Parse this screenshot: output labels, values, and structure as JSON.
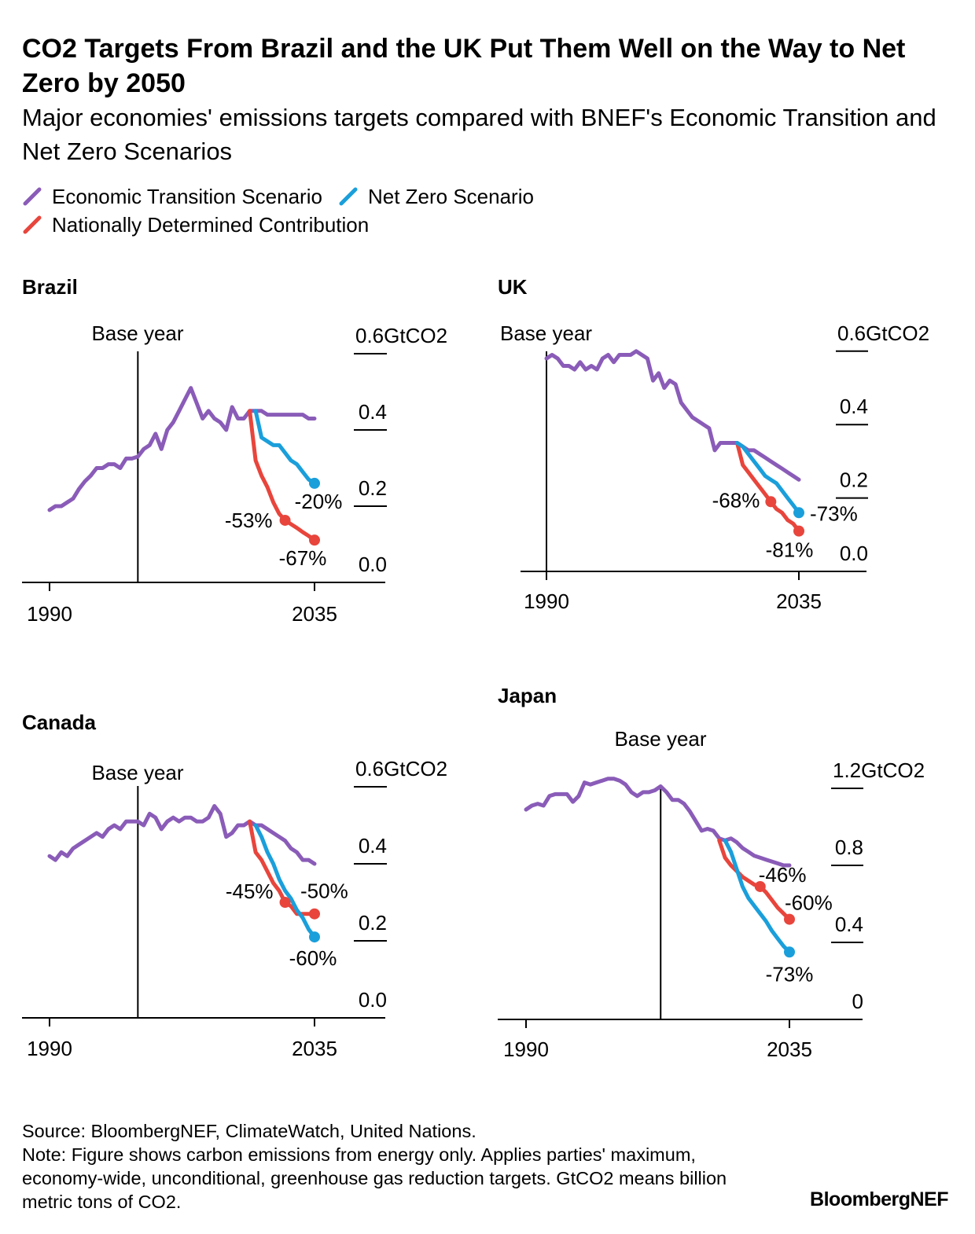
{
  "title": "CO2 Targets From Brazil and the UK Put Them Well on the Way to Net Zero by 2050",
  "subtitle": "Major economies' emissions targets compared with BNEF's Economic Transition and Net Zero Scenarios",
  "legend": [
    {
      "label": "Economic Transition Scenario",
      "color": "#8a5cb8"
    },
    {
      "label": "Net Zero Scenario",
      "color": "#1a9fdb"
    },
    {
      "label": "Nationally Determined Contribution",
      "color": "#e8453c"
    }
  ],
  "footer": {
    "source": "Source: BloombergNEF, ClimateWatch, United Nations.",
    "note": "Note: Figure shows carbon emissions from energy only. Applies parties' maximum, economy-wide, unconditional, greenhouse gas reduction targets. GtCO2 means billion metric tons of CO2.",
    "brand": "BloombergNEF"
  },
  "chart_data": [
    {
      "type": "line",
      "title": "Brazil",
      "base_year": 2005,
      "base_label": "Base year",
      "xlim": [
        1990,
        2035
      ],
      "xticks": [
        "1990",
        "2035"
      ],
      "ylim": [
        0,
        0.6
      ],
      "yticks": [
        {
          "v": 0,
          "label": "0.0"
        },
        {
          "v": 0.2,
          "label": "0.2"
        },
        {
          "v": 0.4,
          "label": "0.4"
        },
        {
          "v": 0.6,
          "label": "0.6GtCO2"
        }
      ],
      "series": [
        {
          "name": "Economic Transition Scenario",
          "color": "#8a5cb8",
          "start": 1990,
          "values": [
            0.19,
            0.2,
            0.2,
            0.21,
            0.22,
            0.245,
            0.265,
            0.28,
            0.3,
            0.3,
            0.31,
            0.31,
            0.3,
            0.325,
            0.325,
            0.33,
            0.35,
            0.36,
            0.39,
            0.35,
            0.4,
            0.42,
            0.45,
            0.48,
            0.51,
            0.47,
            0.43,
            0.45,
            0.43,
            0.42,
            0.4,
            0.46,
            0.43,
            0.43,
            0.45,
            0.45,
            0.45,
            0.44,
            0.44,
            0.44,
            0.44,
            0.44,
            0.44,
            0.44,
            0.43,
            0.43
          ]
        },
        {
          "name": "Net Zero Scenario",
          "color": "#1a9fdb",
          "start": 2025,
          "values": [
            0.45,
            0.38,
            0.37,
            0.36,
            0.36,
            0.34,
            0.32,
            0.31,
            0.29,
            0.27,
            0.26
          ],
          "points": [
            {
              "year": 2035,
              "label": "-20%"
            }
          ]
        },
        {
          "name": "Nationally Determined Contribution",
          "color": "#e8453c",
          "start": 2024,
          "values": [
            0.45,
            0.32,
            0.28,
            0.25,
            0.21,
            0.18,
            0.163,
            0.153,
            0.143,
            0.132,
            0.122,
            0.111
          ],
          "points": [
            {
              "year": 2030,
              "label": "-53%"
            },
            {
              "year": 2035,
              "label": "-67%"
            }
          ]
        }
      ]
    },
    {
      "type": "line",
      "title": "UK",
      "base_year": 1990,
      "base_label": "Base year",
      "xlim": [
        1990,
        2035
      ],
      "xticks": [
        "1990",
        "2035"
      ],
      "ylim": [
        0,
        0.6
      ],
      "yticks": [
        {
          "v": 0,
          "label": "0.0"
        },
        {
          "v": 0.2,
          "label": "0.2"
        },
        {
          "v": 0.4,
          "label": "0.4"
        },
        {
          "v": 0.6,
          "label": "0.6GtCO2"
        }
      ],
      "series": [
        {
          "name": "Economic Transition Scenario",
          "color": "#8a5cb8",
          "start": 1990,
          "values": [
            0.58,
            0.59,
            0.58,
            0.56,
            0.56,
            0.55,
            0.57,
            0.55,
            0.56,
            0.55,
            0.58,
            0.59,
            0.57,
            0.59,
            0.59,
            0.59,
            0.6,
            0.59,
            0.58,
            0.52,
            0.54,
            0.5,
            0.52,
            0.51,
            0.46,
            0.44,
            0.42,
            0.41,
            0.4,
            0.39,
            0.33,
            0.35,
            0.35,
            0.35,
            0.35,
            0.34,
            0.33,
            0.33,
            0.32,
            0.31,
            0.3,
            0.29,
            0.28,
            0.27,
            0.26,
            0.25
          ]
        },
        {
          "name": "Net Zero Scenario",
          "color": "#1a9fdb",
          "start": 2024,
          "values": [
            0.35,
            0.34,
            0.32,
            0.3,
            0.28,
            0.26,
            0.25,
            0.24,
            0.22,
            0.2,
            0.18,
            0.16
          ]
        },
        {
          "name": "Nationally Determined Contribution",
          "color": "#e8453c",
          "start": 2024,
          "values": [
            0.35,
            0.29,
            0.27,
            0.25,
            0.23,
            0.21,
            0.19,
            0.17,
            0.16,
            0.14,
            0.13,
            0.11
          ],
          "points": [
            {
              "year": 2030,
              "label": "-68%"
            },
            {
              "year": 2035,
              "label": "-81%"
            }
          ]
        }
      ],
      "nz_point_label": "-73%"
    },
    {
      "type": "line",
      "title": "Canada",
      "base_year": 2005,
      "base_label": "Base year",
      "xlim": [
        1990,
        2035
      ],
      "xticks": [
        "1990",
        "2035"
      ],
      "ylim": [
        0,
        0.6
      ],
      "yticks": [
        {
          "v": 0,
          "label": "0.0"
        },
        {
          "v": 0.2,
          "label": "0.2"
        },
        {
          "v": 0.4,
          "label": "0.4"
        },
        {
          "v": 0.6,
          "label": "0.6GtCO2"
        }
      ],
      "series": [
        {
          "name": "Economic Transition Scenario",
          "color": "#8a5cb8",
          "start": 1990,
          "values": [
            0.42,
            0.41,
            0.43,
            0.42,
            0.44,
            0.45,
            0.46,
            0.47,
            0.48,
            0.47,
            0.49,
            0.5,
            0.49,
            0.51,
            0.51,
            0.51,
            0.5,
            0.53,
            0.52,
            0.49,
            0.51,
            0.52,
            0.51,
            0.52,
            0.52,
            0.51,
            0.51,
            0.52,
            0.55,
            0.53,
            0.47,
            0.48,
            0.5,
            0.5,
            0.51,
            0.5,
            0.5,
            0.49,
            0.48,
            0.47,
            0.46,
            0.44,
            0.43,
            0.41,
            0.41,
            0.4
          ]
        },
        {
          "name": "Net Zero Scenario",
          "color": "#1a9fdb",
          "start": 2025,
          "values": [
            0.5,
            0.47,
            0.43,
            0.4,
            0.36,
            0.33,
            0.31,
            0.28,
            0.26,
            0.23,
            0.21
          ]
        },
        {
          "name": "Nationally Determined Contribution",
          "color": "#e8453c",
          "start": 2024,
          "values": [
            0.51,
            0.43,
            0.41,
            0.38,
            0.35,
            0.33,
            0.3,
            0.29,
            0.27,
            0.27,
            0.27,
            0.27
          ]
        }
      ]
    },
    {
      "type": "line",
      "title": "Japan",
      "base_year": 2013,
      "base_label": "Base year",
      "xlim": [
        1990,
        2035
      ],
      "xticks": [
        "1990",
        "2035"
      ],
      "ylim": [
        0,
        1.2
      ],
      "yticks": [
        {
          "v": 0,
          "label": "0"
        },
        {
          "v": 0.4,
          "label": "0.4"
        },
        {
          "v": 0.8,
          "label": "0.8"
        },
        {
          "v": 1.2,
          "label": "1.2GtCO2"
        }
      ],
      "series": [
        {
          "name": "Economic Transition Scenario",
          "color": "#8a5cb8",
          "start": 1990,
          "values": [
            1.09,
            1.11,
            1.12,
            1.11,
            1.16,
            1.17,
            1.17,
            1.17,
            1.13,
            1.16,
            1.23,
            1.22,
            1.23,
            1.24,
            1.25,
            1.25,
            1.24,
            1.22,
            1.18,
            1.16,
            1.18,
            1.18,
            1.19,
            1.21,
            1.18,
            1.14,
            1.14,
            1.12,
            1.08,
            1.03,
            0.98,
            0.99,
            0.98,
            0.94,
            0.93,
            0.94,
            0.92,
            0.89,
            0.87,
            0.85,
            0.84,
            0.83,
            0.82,
            0.81,
            0.8,
            0.8
          ]
        },
        {
          "name": "Net Zero Scenario",
          "color": "#1a9fdb",
          "start": 2024,
          "values": [
            0.93,
            0.87,
            0.78,
            0.69,
            0.63,
            0.59,
            0.55,
            0.51,
            0.46,
            0.42,
            0.38,
            0.35
          ]
        },
        {
          "name": "Nationally Determined Contribution",
          "color": "#e8453c",
          "start": 2023,
          "values": [
            0.93,
            0.84,
            0.8,
            0.77,
            0.74,
            0.72,
            0.7,
            0.69,
            0.66,
            0.62,
            0.58,
            0.55,
            0.52
          ]
        }
      ]
    }
  ],
  "point_labels": {
    "brazil": {
      "nz_2035": "-20%",
      "ndc_2030": "-53%",
      "ndc_2035": "-67%"
    },
    "uk": {
      "nz_2035": "-73%",
      "ndc_2030": "-68%",
      "ndc_2035": "-81%"
    },
    "canada": {
      "nz_2035": "-60%",
      "ndc_2030": "-45%",
      "ndc_2035": "-50%"
    },
    "japan": {
      "nz_2035": "-73%",
      "ndc_2030": "-46%",
      "ndc_2035": "-60%"
    }
  }
}
